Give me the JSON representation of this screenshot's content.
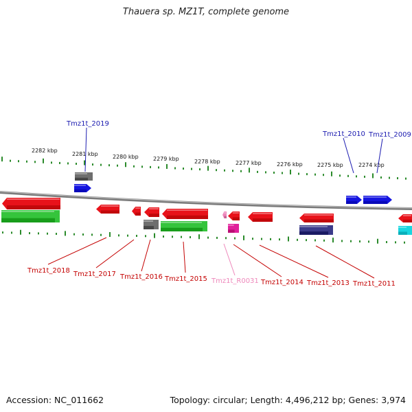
{
  "title": "Thauera sp. MZ1T, complete genome",
  "footer": {
    "accession": "Accession: NC_011662",
    "summary": "Topology: circular; Length: 4,496,212 bp; Genes: 3,974"
  },
  "colors": {
    "ruler": "#2a8a2a",
    "backbone": "#8a8a8a",
    "gene_red": "#e8121a",
    "gene_green": "#35c43c",
    "gene_blue": "#1515e0",
    "gene_gray": "#6e6e6e",
    "gene_magenta": "#e0209a",
    "gene_navy": "#3b3b8a",
    "gene_cyan": "#18d6e0",
    "label_red": "#c40000",
    "label_blue": "#1a1ab0",
    "label_pink": "#ee88bb"
  },
  "kbp_ticks": [
    "2282 kbp",
    "2281 kbp",
    "2280 kbp",
    "2279 kbp",
    "2278 kbp",
    "2277 kbp",
    "2276 kbp",
    "2275 kbp",
    "2274 kbp"
  ],
  "genes_top": [
    {
      "label": "Tmz1t_2019",
      "color": "label_blue"
    },
    {
      "label": "Tmz1t_2010",
      "color": "label_blue"
    },
    {
      "label": "Tmz1t_2009",
      "color": "label_blue"
    }
  ],
  "genes_bottom": [
    {
      "label": "Tmz1t_2018",
      "color": "label_red"
    },
    {
      "label": "Tmz1t_2017",
      "color": "label_red"
    },
    {
      "label": "Tmz1t_2016",
      "color": "label_red"
    },
    {
      "label": "Tmz1t_2015",
      "color": "label_red"
    },
    {
      "label": "Tmz1t_R0031",
      "color": "label_pink"
    },
    {
      "label": "Tmz1t_2014",
      "color": "label_red"
    },
    {
      "label": "Tmz1t_2013",
      "color": "label_red"
    },
    {
      "label": "Tmz1t_2011",
      "color": "label_red"
    }
  ]
}
